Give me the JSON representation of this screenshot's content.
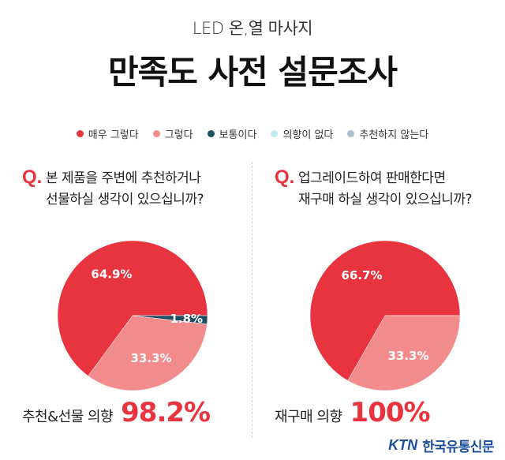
{
  "header": {
    "subtitle": "LED 온,열 마사지",
    "title": "만족도 사전 설문조사"
  },
  "legend": [
    {
      "label": "매우 그렇다",
      "color": "#e8343f"
    },
    {
      "label": "그렇다",
      "color": "#f28b8b"
    },
    {
      "label": "보통이다",
      "color": "#1f4e63"
    },
    {
      "label": "의향이 없다",
      "color": "#bfe8ef"
    },
    {
      "label": "추천하지 않는다",
      "color": "#a9c3cc"
    }
  ],
  "chart_data": [
    {
      "type": "pie",
      "question_mark": "Q.",
      "question_line1": "본 제품을 주변에 추천하거나",
      "question_line2": "선물하실 생각이 있으십니까?",
      "slices": [
        {
          "category": "매우 그렇다",
          "value": 64.9,
          "label": "64.9%",
          "color": "#e8343f"
        },
        {
          "category": "그렇다",
          "value": 33.3,
          "label": "33.3%",
          "color": "#f28b8b"
        },
        {
          "category": "보통이다",
          "value": 1.8,
          "label": "1.8%",
          "color": "#1f4e63"
        }
      ],
      "intent_label": "추천&선물 의향",
      "intent_value": "98.2%"
    },
    {
      "type": "pie",
      "question_mark": "Q.",
      "question_line1": "업그레이드하여 판매한다면",
      "question_line2": "재구매 하실 생각이 있으십니까?",
      "slices": [
        {
          "category": "매우 그렇다",
          "value": 66.7,
          "label": "66.7%",
          "color": "#e8343f"
        },
        {
          "category": "그렇다",
          "value": 33.3,
          "label": "33.3%",
          "color": "#f28b8b"
        }
      ],
      "intent_label": "재구매 의향",
      "intent_value": "100%"
    }
  ],
  "footer": {
    "logo": "KTN",
    "paper": "한국유통신문"
  }
}
